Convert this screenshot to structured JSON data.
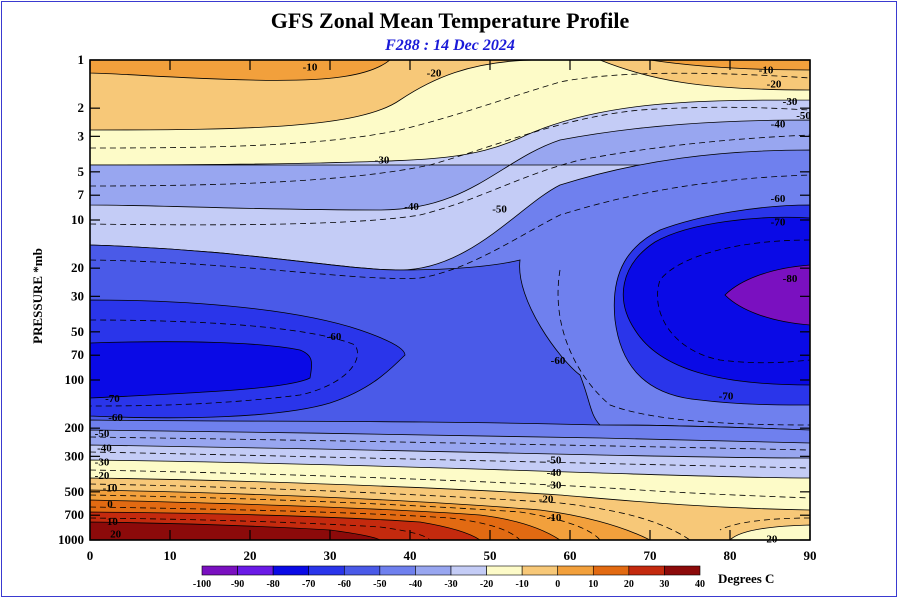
{
  "chart_data": {
    "type": "contour",
    "title": "GFS Zonal Mean Temperature Profile",
    "subtitle": "F288 : 14 Dec 2024",
    "ylabel": "PRESSURE *mb",
    "x_ticks": [
      0,
      10,
      20,
      30,
      40,
      50,
      60,
      70,
      80,
      90
    ],
    "xlim": [
      0,
      90
    ],
    "y_ticks": [
      1,
      2,
      3,
      5,
      7,
      10,
      20,
      30,
      50,
      70,
      100,
      200,
      300,
      500,
      700,
      1000
    ],
    "ylim": [
      1,
      1000
    ],
    "y_scale": "log",
    "y_inverted": true,
    "colorbar": {
      "levels": [
        -100,
        -90,
        -80,
        -70,
        -60,
        -50,
        -40,
        -30,
        -20,
        -10,
        0,
        10,
        20,
        30,
        40
      ],
      "colors": [
        "#7a10c0",
        "#6a1ae6",
        "#0a0ae6",
        "#2a35ea",
        "#4a5ae8",
        "#6f80ee",
        "#98a6f0",
        "#c4ccf6",
        "#fdfbc8",
        "#f7c878",
        "#f2a03c",
        "#e26a12",
        "#c42a0e",
        "#8c0a0a",
        "#8b6a2a"
      ],
      "unit_label": "Degrees C"
    },
    "contour_labels": [
      {
        "text": "-10",
        "x": 27.5,
        "p": 1.1
      },
      {
        "text": "-20",
        "x": 43,
        "p": 1.2
      },
      {
        "text": "-10",
        "x": 84.5,
        "p": 1.15
      },
      {
        "text": "-20",
        "x": 85.5,
        "p": 1.4
      },
      {
        "text": "-30",
        "x": 87.5,
        "p": 1.8
      },
      {
        "text": "-40",
        "x": 86,
        "p": 2.5
      },
      {
        "text": "-50",
        "x": 89.2,
        "p": 2.2
      },
      {
        "text": "-30",
        "x": 36.5,
        "p": 4.2
      },
      {
        "text": "-40",
        "x": 40.2,
        "p": 8.2
      },
      {
        "text": "-50",
        "x": 51.2,
        "p": 8.5
      },
      {
        "text": "-60",
        "x": 86,
        "p": 7.3
      },
      {
        "text": "-70",
        "x": 86,
        "p": 10.2
      },
      {
        "text": "-80",
        "x": 87.5,
        "p": 23
      },
      {
        "text": "-60",
        "x": 30.5,
        "p": 53
      },
      {
        "text": "-60",
        "x": 58.5,
        "p": 75
      },
      {
        "text": "-70",
        "x": 79.5,
        "p": 125
      },
      {
        "text": "-70",
        "x": 2.8,
        "p": 130
      },
      {
        "text": "-60",
        "x": 3.2,
        "p": 170
      },
      {
        "text": "-50",
        "x": 1.5,
        "p": 215
      },
      {
        "text": "-40",
        "x": 1.8,
        "p": 265
      },
      {
        "text": "-30",
        "x": 1.5,
        "p": 322
      },
      {
        "text": "-20",
        "x": 1.5,
        "p": 392
      },
      {
        "text": "-10",
        "x": 2.5,
        "p": 470
      },
      {
        "text": "0",
        "x": 2.5,
        "p": 590
      },
      {
        "text": "10",
        "x": 2.8,
        "p": 760
      },
      {
        "text": "20",
        "x": 3.2,
        "p": 910
      },
      {
        "text": "-50",
        "x": 58,
        "p": 315
      },
      {
        "text": "-40",
        "x": 58,
        "p": 375
      },
      {
        "text": "-30",
        "x": 58,
        "p": 450
      },
      {
        "text": "-20",
        "x": 57,
        "p": 550
      },
      {
        "text": "-10",
        "x": 58,
        "p": 720
      },
      {
        "text": "-20",
        "x": 85,
        "p": 980
      }
    ]
  }
}
